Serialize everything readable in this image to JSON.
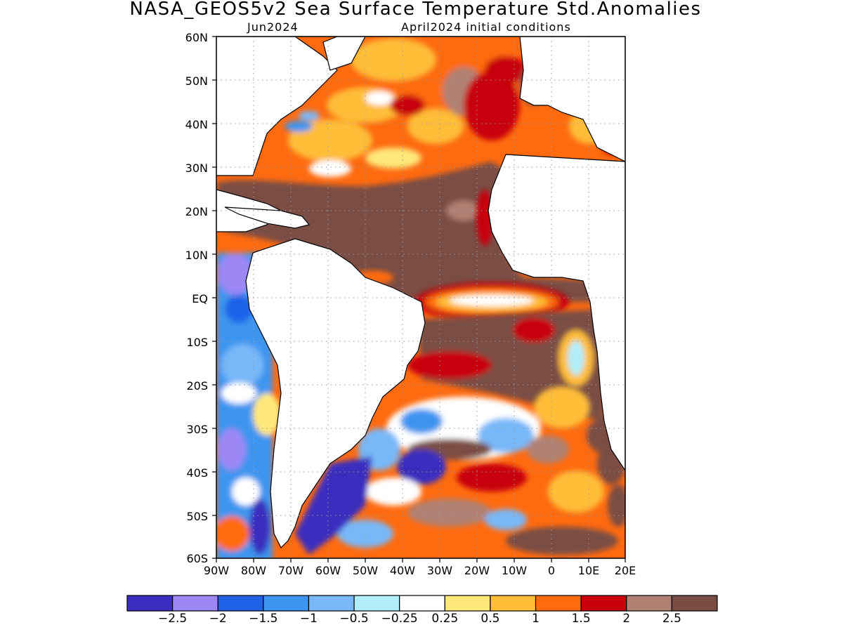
{
  "title": "NASA_GEOS5v2 Sea Surface Temperature Std.Anomalies",
  "subtitle_left": "Jun2024",
  "subtitle_right": "April2024 initial conditions",
  "map": {
    "lon_range": [
      -90,
      20
    ],
    "lat_range": [
      -60,
      60
    ],
    "lat_ticks": [
      "60N",
      "50N",
      "40N",
      "30N",
      "20N",
      "10N",
      "EQ",
      "10S",
      "20S",
      "30S",
      "40S",
      "50S",
      "60S"
    ],
    "lon_ticks": [
      "90W",
      "80W",
      "70W",
      "60W",
      "50W",
      "40W",
      "30W",
      "20W",
      "10W",
      "0",
      "10E",
      "20E"
    ],
    "grid": true
  },
  "colorbar": {
    "colors": [
      "#3b2dbf",
      "#9c87f5",
      "#1f62e8",
      "#3c95f0",
      "#78b8f8",
      "#b1eefa",
      "#ffffff",
      "#ffe87a",
      "#ffbd38",
      "#ff6a0f",
      "#c8000a",
      "#b08172",
      "#7a4d44"
    ],
    "labels": [
      "−2.5",
      "−2",
      "−1.5",
      "−1",
      "−0.5",
      "−0.25",
      "0.25",
      "0.5",
      "1",
      "1.5",
      "2",
      "2.5"
    ]
  }
}
